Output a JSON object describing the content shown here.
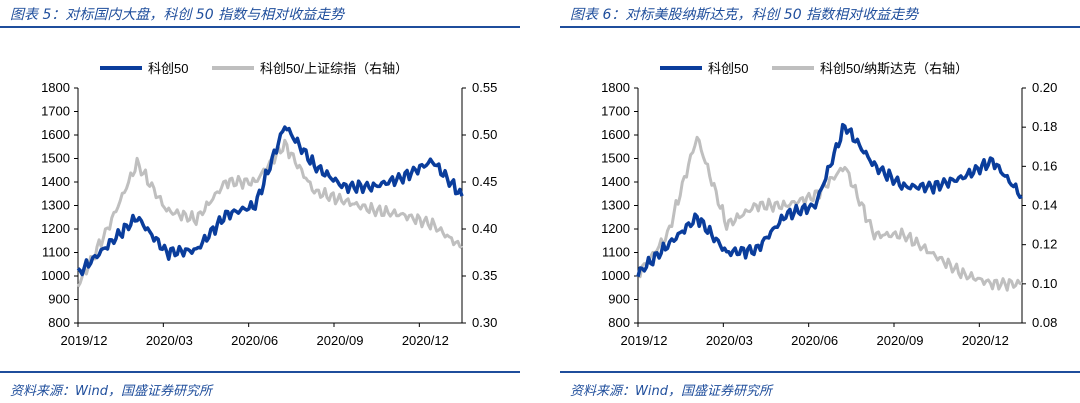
{
  "colors": {
    "accent": "#1f4e9c",
    "series_primary": "#0a3d9c",
    "series_secondary": "#bfbfbf"
  },
  "panels": [
    {
      "title": "图表 5：对标国内大盘，科创 50 指数与相对收益走势",
      "source": "资料来源：Wind，国盛证券研究所"
    },
    {
      "title": "图表 6：对标美股纳斯达克，科创 50 指数相对收益走势",
      "source": "资料来源：Wind，国盛证券研究所"
    }
  ],
  "chart_data": [
    {
      "type": "line",
      "title": "",
      "xlabel": "",
      "ylabel": "",
      "x_ticks": [
        "2019/12",
        "2020/03",
        "2020/06",
        "2020/09",
        "2020/12"
      ],
      "ylim_left": [
        800,
        1800
      ],
      "yticks_left": [
        800,
        900,
        1000,
        1100,
        1200,
        1300,
        1400,
        1500,
        1600,
        1700,
        1800
      ],
      "ylim_right": [
        0.3,
        0.55
      ],
      "yticks_right": [
        "0.30",
        "0.35",
        "0.40",
        "0.45",
        "0.50",
        "0.55"
      ],
      "legend": [
        "科创50",
        "科创50/上证综指（右轴）"
      ],
      "series": [
        {
          "name": "科创50",
          "axis": "left",
          "color": "#0a3d9c",
          "x": [
            "2019/12",
            "2020/01",
            "2020/02",
            "2020/03",
            "2020/04",
            "2020/05",
            "2020/06",
            "2020/07",
            "2020/08",
            "2020/09",
            "2020/10",
            "2020/11",
            "2020/12",
            "2021/01"
          ],
          "values": [
            1010,
            1130,
            1250,
            1100,
            1110,
            1260,
            1300,
            1640,
            1470,
            1380,
            1380,
            1420,
            1490,
            1340
          ]
        },
        {
          "name": "科创50/上证综指（右轴）",
          "axis": "right",
          "color": "#bfbfbf",
          "x": [
            "2019/12",
            "2020/01",
            "2020/02",
            "2020/03",
            "2020/04",
            "2020/05",
            "2020/06",
            "2020/07",
            "2020/08",
            "2020/09",
            "2020/10",
            "2020/11",
            "2020/12",
            "2021/01"
          ],
          "values": [
            0.34,
            0.4,
            0.47,
            0.42,
            0.41,
            0.45,
            0.45,
            0.49,
            0.44,
            0.43,
            0.42,
            0.415,
            0.405,
            0.38
          ]
        }
      ]
    },
    {
      "type": "line",
      "title": "",
      "xlabel": "",
      "ylabel": "",
      "x_ticks": [
        "2019/12",
        "2020/03",
        "2020/06",
        "2020/09",
        "2020/12"
      ],
      "ylim_left": [
        800,
        1800
      ],
      "yticks_left": [
        800,
        900,
        1000,
        1100,
        1200,
        1300,
        1400,
        1500,
        1600,
        1700,
        1800
      ],
      "ylim_right": [
        0.08,
        0.2
      ],
      "yticks_right": [
        "0.08",
        "0.10",
        "0.12",
        "0.14",
        "0.16",
        "0.18",
        "0.20"
      ],
      "legend": [
        "科创50",
        "科创50/纳斯达克（右轴）"
      ],
      "series": [
        {
          "name": "科创50",
          "axis": "left",
          "color": "#0a3d9c",
          "x": [
            "2019/12",
            "2020/01",
            "2020/02",
            "2020/03",
            "2020/04",
            "2020/05",
            "2020/06",
            "2020/07",
            "2020/08",
            "2020/09",
            "2020/10",
            "2020/11",
            "2020/12",
            "2021/01"
          ],
          "values": [
            1010,
            1130,
            1250,
            1100,
            1110,
            1260,
            1300,
            1640,
            1470,
            1380,
            1380,
            1420,
            1490,
            1340
          ]
        },
        {
          "name": "科创50/纳斯达克（右轴）",
          "axis": "right",
          "color": "#bfbfbf",
          "x": [
            "2019/12",
            "2020/01",
            "2020/02",
            "2020/03",
            "2020/04",
            "2020/05",
            "2020/06",
            "2020/07",
            "2020/08",
            "2020/09",
            "2020/10",
            "2020/11",
            "2020/12",
            "2021/01"
          ],
          "values": [
            0.105,
            0.125,
            0.175,
            0.13,
            0.14,
            0.14,
            0.145,
            0.16,
            0.125,
            0.125,
            0.115,
            0.105,
            0.1,
            0.1
          ]
        }
      ]
    }
  ]
}
